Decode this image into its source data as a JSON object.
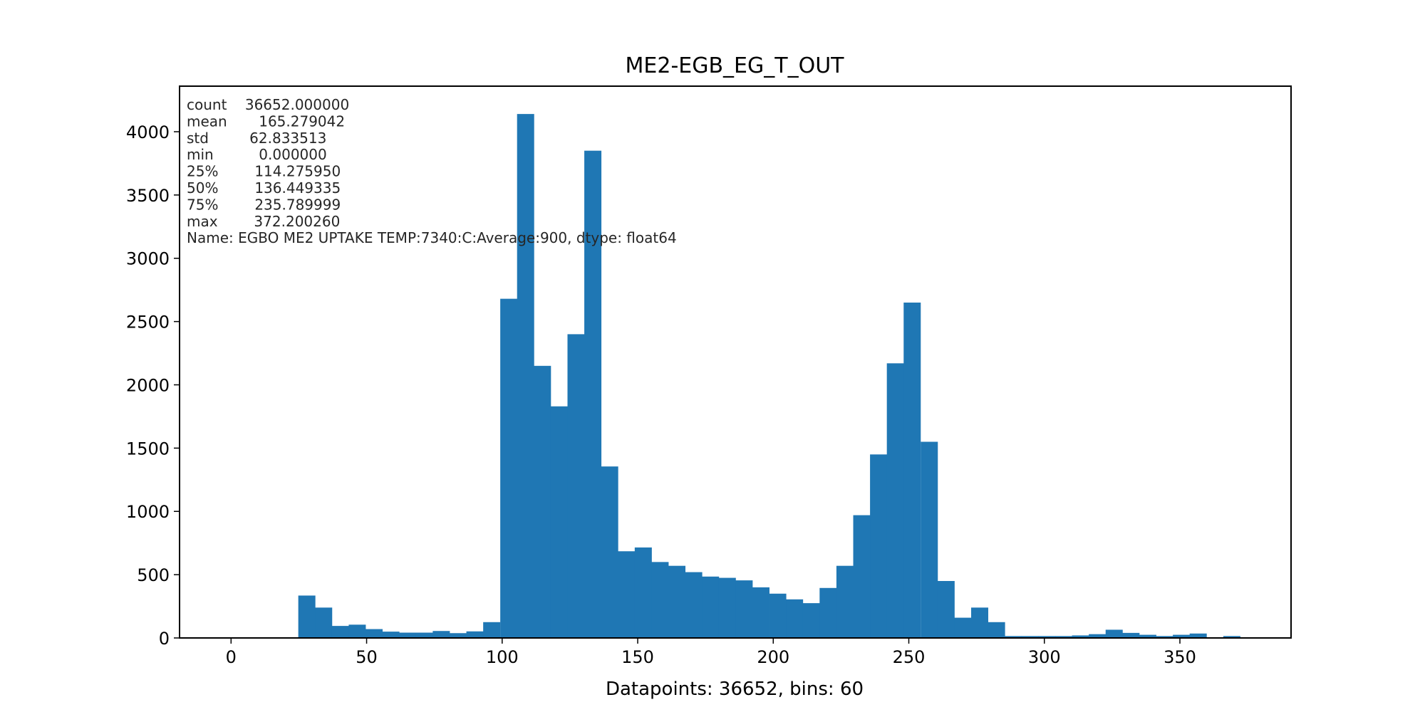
{
  "chart_data": {
    "type": "bar",
    "title": "ME2-EGB_EG_T_OUT",
    "xlabel": "Datapoints: 36652, bins: 60",
    "ylabel": "",
    "xlim": [
      -19,
      391
    ],
    "ylim": [
      0,
      4360
    ],
    "xticks": [
      0,
      50,
      100,
      150,
      200,
      250,
      300,
      350
    ],
    "yticks": [
      0,
      500,
      1000,
      1500,
      2000,
      2500,
      3000,
      3500,
      4000
    ],
    "grid": false,
    "bar_color": "#1f77b4",
    "bin_width": 6.2033,
    "bins": [
      {
        "x0": 0.0,
        "value": 0
      },
      {
        "x0": 6.2,
        "value": 0
      },
      {
        "x0": 12.4,
        "value": 0
      },
      {
        "x0": 18.6,
        "value": 0
      },
      {
        "x0": 24.8,
        "value": 335
      },
      {
        "x0": 31.0,
        "value": 240
      },
      {
        "x0": 37.2,
        "value": 95
      },
      {
        "x0": 43.4,
        "value": 105
      },
      {
        "x0": 49.6,
        "value": 70
      },
      {
        "x0": 55.8,
        "value": 50
      },
      {
        "x0": 62.0,
        "value": 42
      },
      {
        "x0": 68.2,
        "value": 42
      },
      {
        "x0": 74.4,
        "value": 55
      },
      {
        "x0": 80.6,
        "value": 38
      },
      {
        "x0": 86.8,
        "value": 52
      },
      {
        "x0": 93.0,
        "value": 125
      },
      {
        "x0": 99.3,
        "value": 2680
      },
      {
        "x0": 105.5,
        "value": 4140
      },
      {
        "x0": 111.7,
        "value": 2150
      },
      {
        "x0": 117.9,
        "value": 1830
      },
      {
        "x0": 124.1,
        "value": 2400
      },
      {
        "x0": 130.3,
        "value": 3850
      },
      {
        "x0": 136.5,
        "value": 1355
      },
      {
        "x0": 142.7,
        "value": 685
      },
      {
        "x0": 148.9,
        "value": 715
      },
      {
        "x0": 155.1,
        "value": 600
      },
      {
        "x0": 161.3,
        "value": 570
      },
      {
        "x0": 167.5,
        "value": 520
      },
      {
        "x0": 173.7,
        "value": 485
      },
      {
        "x0": 179.9,
        "value": 475
      },
      {
        "x0": 186.1,
        "value": 455
      },
      {
        "x0": 192.3,
        "value": 400
      },
      {
        "x0": 198.5,
        "value": 350
      },
      {
        "x0": 204.7,
        "value": 305
      },
      {
        "x0": 210.9,
        "value": 275
      },
      {
        "x0": 217.1,
        "value": 395
      },
      {
        "x0": 223.3,
        "value": 570
      },
      {
        "x0": 229.5,
        "value": 970
      },
      {
        "x0": 235.7,
        "value": 1450
      },
      {
        "x0": 241.9,
        "value": 2170
      },
      {
        "x0": 248.1,
        "value": 2650
      },
      {
        "x0": 254.4,
        "value": 1550
      },
      {
        "x0": 260.6,
        "value": 450
      },
      {
        "x0": 266.8,
        "value": 160
      },
      {
        "x0": 273.0,
        "value": 240
      },
      {
        "x0": 279.2,
        "value": 125
      },
      {
        "x0": 285.4,
        "value": 15
      },
      {
        "x0": 291.6,
        "value": 15
      },
      {
        "x0": 297.8,
        "value": 15
      },
      {
        "x0": 304.0,
        "value": 15
      },
      {
        "x0": 310.2,
        "value": 20
      },
      {
        "x0": 316.4,
        "value": 30
      },
      {
        "x0": 322.6,
        "value": 65
      },
      {
        "x0": 328.8,
        "value": 40
      },
      {
        "x0": 335.0,
        "value": 25
      },
      {
        "x0": 341.2,
        "value": 15
      },
      {
        "x0": 347.4,
        "value": 25
      },
      {
        "x0": 353.6,
        "value": 35
      },
      {
        "x0": 359.8,
        "value": 5
      },
      {
        "x0": 366.0,
        "value": 15
      }
    ],
    "stats_lines": [
      "count    36652.000000",
      "mean       165.279042",
      "std         62.833513",
      "min          0.000000",
      "25%        114.275950",
      "50%        136.449335",
      "75%        235.789999",
      "max        372.200260",
      "Name: EGBO ME2 UPTAKE TEMP:7340:C:Average:900, dtype: float64"
    ]
  }
}
